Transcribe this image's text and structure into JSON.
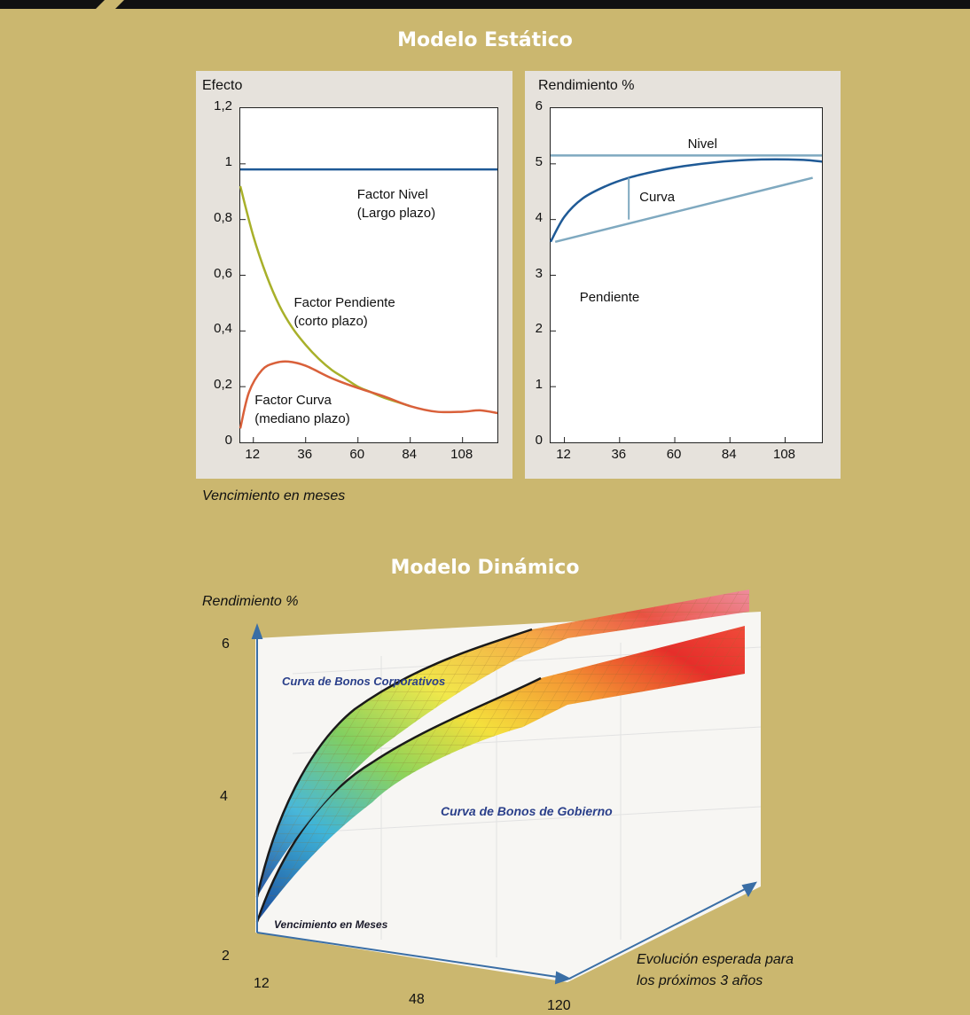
{
  "static_title": "Modelo Estático",
  "dynamic_title": "Modelo Dinámico",
  "x_caption": "Vencimiento en meses",
  "chart_data": [
    {
      "type": "line",
      "ylabel": "Efecto",
      "xlim": [
        6,
        124
      ],
      "ylim": [
        0,
        1.2
      ],
      "y_ticks": [
        "0",
        "0,2",
        "0,4",
        "0,6",
        "0,8",
        "1",
        "1,2"
      ],
      "x_ticks": [
        "12",
        "36",
        "60",
        "84",
        "108"
      ],
      "series": [
        {
          "name": "Factor Nivel",
          "color": "#1f5a96",
          "points": [
            [
              6,
              0.98
            ],
            [
              24,
              0.98
            ],
            [
              48,
              0.98
            ],
            [
              72,
              0.98
            ],
            [
              96,
              0.98
            ],
            [
              124,
              0.98
            ]
          ]
        },
        {
          "name": "Factor Pendiente",
          "color": "#a8b02a",
          "points": [
            [
              6,
              0.92
            ],
            [
              12,
              0.74
            ],
            [
              18,
              0.6
            ],
            [
              24,
              0.49
            ],
            [
              30,
              0.41
            ],
            [
              36,
              0.35
            ],
            [
              42,
              0.3
            ],
            [
              48,
              0.26
            ],
            [
              54,
              0.23
            ],
            [
              60,
              0.2
            ],
            [
              66,
              0.18
            ],
            [
              72,
              0.16
            ],
            [
              78,
              0.145
            ],
            [
              84,
              0.13
            ]
          ]
        },
        {
          "name": "Factor Curva",
          "color": "#d9603a",
          "points": [
            [
              6,
              0.05
            ],
            [
              10,
              0.18
            ],
            [
              16,
              0.26
            ],
            [
              22,
              0.285
            ],
            [
              28,
              0.29
            ],
            [
              36,
              0.275
            ],
            [
              48,
              0.23
            ],
            [
              60,
              0.195
            ],
            [
              72,
              0.165
            ],
            [
              84,
              0.13
            ],
            [
              96,
              0.11
            ],
            [
              108,
              0.11
            ],
            [
              116,
              0.115
            ],
            [
              124,
              0.105
            ]
          ]
        }
      ],
      "annotations": [
        {
          "text": "Factor Nivel",
          "sub": "(Largo plazo)",
          "x": 60,
          "y": 0.92
        },
        {
          "text": "Factor Pendiente",
          "sub": "(corto plazo)",
          "x": 31,
          "y": 0.53
        },
        {
          "text": "Factor Curva",
          "sub": "(mediano plazo)",
          "x": 13,
          "y": 0.18
        }
      ]
    },
    {
      "type": "line",
      "ylabel": "Rendimiento %",
      "xlim": [
        6,
        124
      ],
      "ylim": [
        0,
        6
      ],
      "y_ticks": [
        "0",
        "1",
        "2",
        "3",
        "4",
        "5",
        "6"
      ],
      "x_ticks": [
        "12",
        "36",
        "60",
        "84",
        "108"
      ],
      "series": [
        {
          "name": "Nivel",
          "color": "#7fa9c0",
          "points": [
            [
              6,
              5.15
            ],
            [
              124,
              5.15
            ]
          ]
        },
        {
          "name": "Curva",
          "color": "#1f5a96",
          "points": [
            [
              6,
              3.6
            ],
            [
              12,
              4.05
            ],
            [
              20,
              4.38
            ],
            [
              30,
              4.6
            ],
            [
              40,
              4.75
            ],
            [
              52,
              4.87
            ],
            [
              64,
              4.96
            ],
            [
              78,
              5.03
            ],
            [
              92,
              5.07
            ],
            [
              104,
              5.08
            ],
            [
              116,
              5.07
            ],
            [
              124,
              5.04
            ]
          ]
        },
        {
          "name": "Pendiente",
          "color": "#7fa9c0",
          "points": [
            [
              8,
              3.6
            ],
            [
              120,
              4.75
            ]
          ]
        }
      ],
      "curvature_marker": {
        "x": 40,
        "from": 4.0,
        "to": 4.75
      },
      "annotations": [
        {
          "text": "Nivel",
          "x": 66,
          "y": 5.5
        },
        {
          "text": "Curva",
          "x": 45,
          "y": 4.55
        },
        {
          "text": "Pendiente",
          "x": 19,
          "y": 2.75
        }
      ]
    },
    {
      "type": "surface-3d",
      "ylabel": "Rendimiento %",
      "z_ticks": [
        "2",
        "4",
        "6"
      ],
      "x_ticks": [
        "12",
        "48",
        "120"
      ],
      "x_axis_label": "Vencimiento en Meses",
      "depth_axis_label": "Evolución esperada para",
      "depth_axis_label_line2": "los próximos 3 años",
      "series": [
        {
          "name": "Curva de Bonos Corporativos"
        },
        {
          "name": "Curva de Bonos de Gobierno"
        }
      ]
    }
  ]
}
